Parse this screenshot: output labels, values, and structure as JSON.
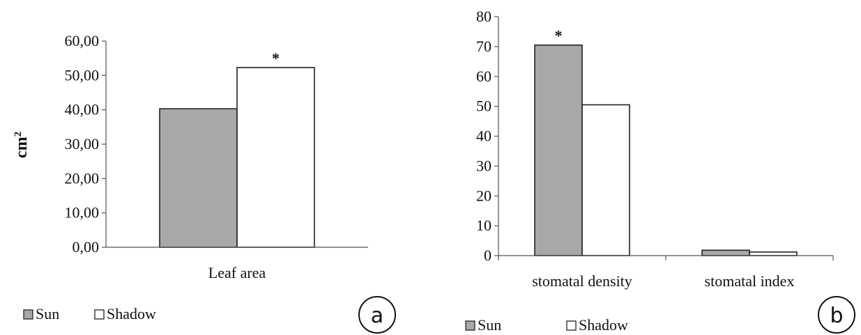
{
  "chart_data": [
    {
      "type": "bar",
      "panel": "a",
      "categories": [
        "Leaf area"
      ],
      "series": [
        {
          "name": "Sun",
          "color": "#a8a8a8",
          "values": [
            40.3
          ]
        },
        {
          "name": "Shadow",
          "color": "#ffffff",
          "values": [
            52.3
          ]
        }
      ],
      "annotations": [
        {
          "category": "Leaf area",
          "series": "Shadow",
          "text": "*"
        }
      ],
      "ylabel": "cm",
      "ylabel_superscript": "2",
      "ylim": [
        0,
        60
      ],
      "yticks": [
        "0,00",
        "10,00",
        "20,00",
        "30,00",
        "40,00",
        "50,00",
        "60,00"
      ],
      "grid": false,
      "legend": "bottom-left"
    },
    {
      "type": "bar",
      "panel": "b",
      "categories": [
        "stomatal density",
        "stomatal index"
      ],
      "series": [
        {
          "name": "Sun",
          "color": "#a8a8a8",
          "values": [
            70.5,
            1.8
          ]
        },
        {
          "name": "Shadow",
          "color": "#ffffff",
          "values": [
            50.5,
            1.2
          ]
        }
      ],
      "annotations": [
        {
          "category": "stomatal density",
          "series": "Sun",
          "text": "*"
        }
      ],
      "ylabel": "",
      "ylim": [
        0,
        80
      ],
      "yticks": [
        "0",
        "10",
        "20",
        "30",
        "40",
        "50",
        "60",
        "70",
        "80"
      ],
      "grid": false,
      "legend": "bottom-left"
    }
  ]
}
